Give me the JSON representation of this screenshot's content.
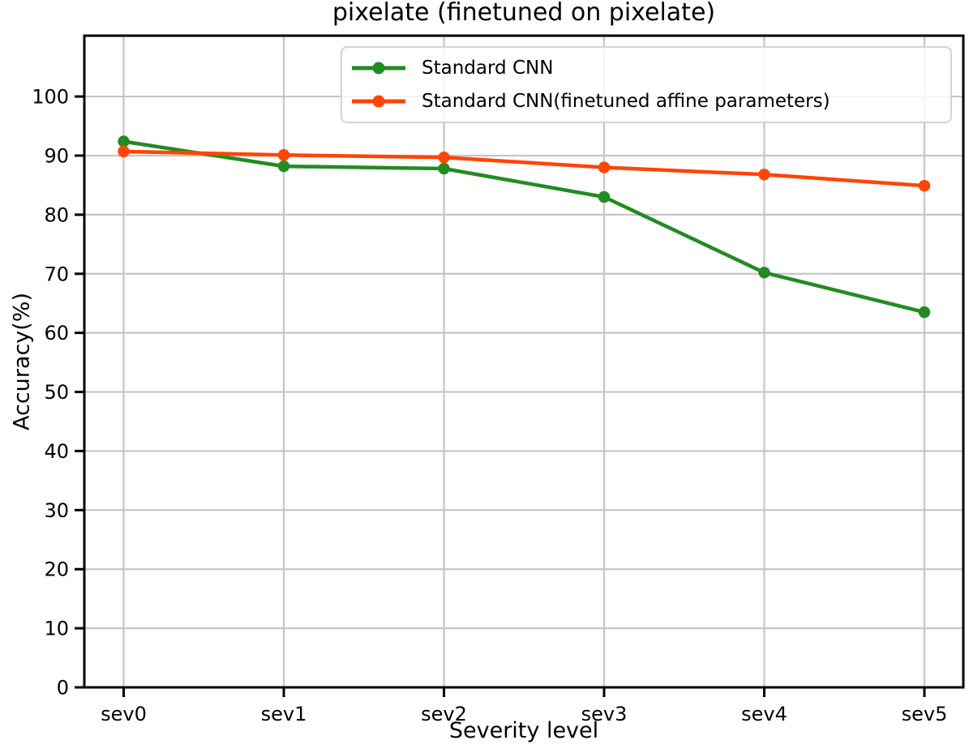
{
  "chart_data": {
    "type": "line",
    "title": "pixelate (finetuned on pixelate)",
    "xlabel": "Severity level",
    "ylabel": "Accuracy(%)",
    "categories": [
      "sev0",
      "sev1",
      "sev2",
      "sev3",
      "sev4",
      "sev5"
    ],
    "series": [
      {
        "name": "Standard CNN",
        "color": "#228B22",
        "values": [
          92.4,
          88.2,
          87.8,
          83.0,
          70.2,
          63.5
        ]
      },
      {
        "name": "Standard CNN(finetuned affine parameters)",
        "color": "#FF4500",
        "values": [
          90.7,
          90.1,
          89.7,
          88.0,
          86.8,
          84.9
        ]
      }
    ],
    "yticks": [
      0,
      10,
      20,
      30,
      40,
      50,
      60,
      70,
      80,
      90,
      100
    ],
    "ylim": [
      0,
      110.3
    ],
    "grid": true,
    "grid_color": "#c6c6c6",
    "axis_color": "#000000",
    "legend_position": "upper center"
  }
}
